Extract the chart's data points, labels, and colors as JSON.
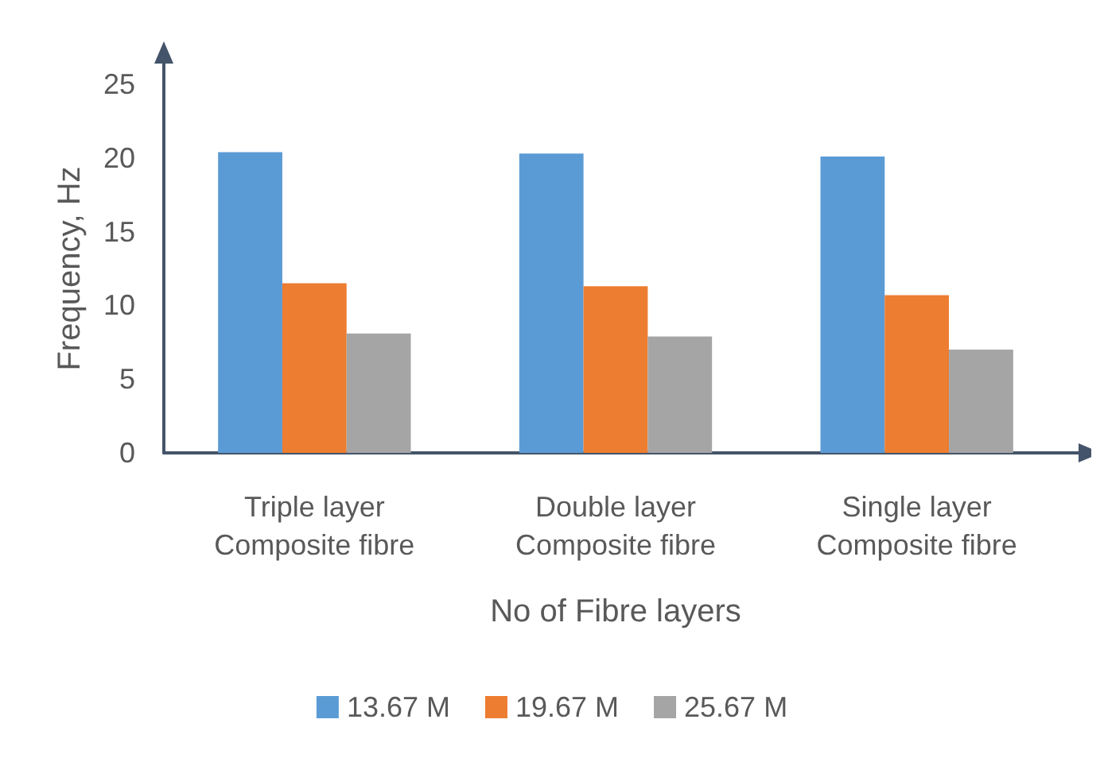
{
  "chart_data": {
    "type": "bar",
    "xlabel": "No of Fibre layers",
    "ylabel": "Frequency, Hz",
    "categories": [
      "Triple layer\nComposite fibre",
      "Double layer\nComposite fibre",
      "Single layer\nComposite fibre"
    ],
    "series": [
      {
        "name": "13.67 M",
        "color": "#5b9bd5",
        "values": [
          20.4,
          20.3,
          20.1
        ]
      },
      {
        "name": "19.67 M",
        "color": "#ed7d31",
        "values": [
          11.5,
          11.3,
          10.7
        ]
      },
      {
        "name": "25.67 M",
        "color": "#a5a5a5",
        "values": [
          8.1,
          7.9,
          7.0
        ]
      }
    ],
    "ylim": [
      0,
      25
    ],
    "yticks": [
      0,
      5,
      10,
      15,
      20,
      25
    ],
    "grid": false,
    "legend": "bottom"
  }
}
